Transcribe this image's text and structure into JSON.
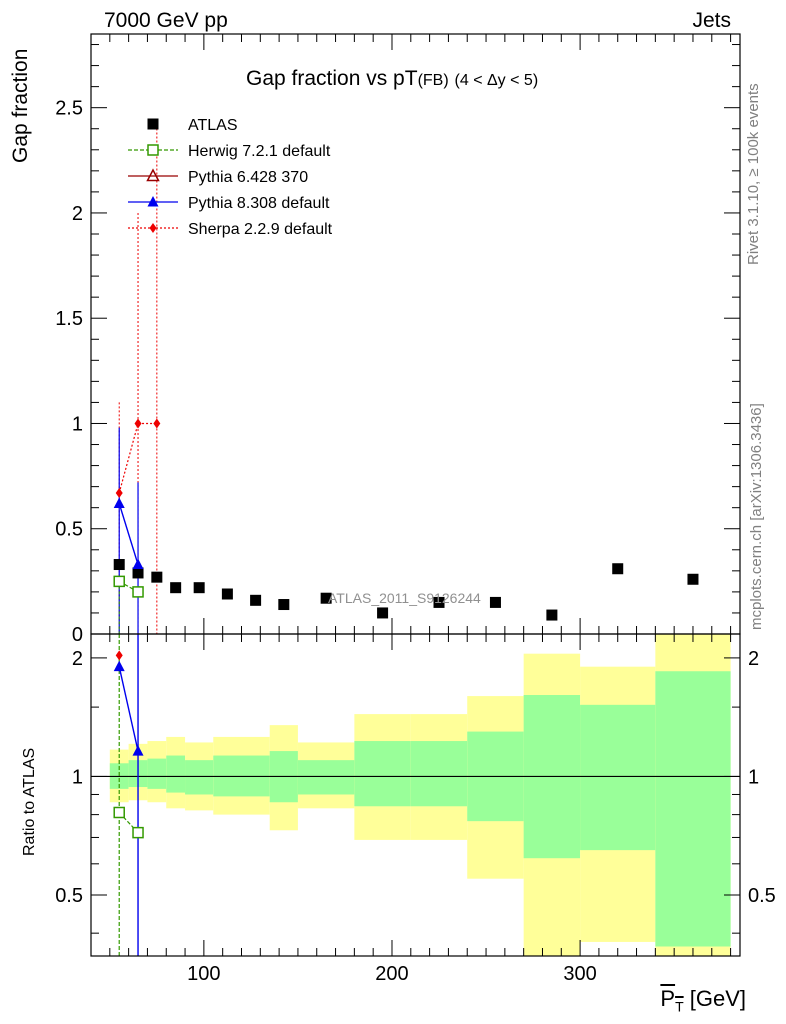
{
  "header": {
    "left": "7000 GeV pp",
    "right": "Jets"
  },
  "side_labels": {
    "rivet": "Rivet 3.1.10, ≥ 100k events",
    "mcplots": "mcplots.cern.ch [arXiv:1306.3436]"
  },
  "watermark": "ATLAS_2011_S9126244",
  "colors": {
    "atlas": "#000000",
    "herwig": "#339900",
    "pythia6": "#990000",
    "pythia8": "#0000ee",
    "sherpa": "#ee0000",
    "band_outer": "#ffff99",
    "band_inner": "#99ff99"
  },
  "chart_data": [
    {
      "type": "scatter",
      "title": "Gap fraction vs pT",
      "title_suffix": "(FB)",
      "title_range": "(4 < Δy < 5)",
      "ylabel": "Gap fraction",
      "xlim": [
        40,
        385
      ],
      "ylim": [
        0,
        2.85
      ],
      "yticks": [
        0,
        0.5,
        1,
        1.5,
        2,
        2.5
      ],
      "ytick_labels": [
        "0",
        "0.5",
        "1",
        "1.5",
        "2",
        "2.5"
      ],
      "legend_position": "top-left",
      "legend": [
        {
          "label": "ATLAS",
          "marker": "square",
          "color": "#000000"
        },
        {
          "label": "Herwig 7.2.1 default",
          "marker": "open-square",
          "color": "#339900"
        },
        {
          "label": "Pythia 6.428 370",
          "marker": "open-triangle",
          "color": "#990000"
        },
        {
          "label": "Pythia 8.308 default",
          "marker": "triangle",
          "color": "#0000ee"
        },
        {
          "label": "Sherpa 2.2.9 default",
          "marker": "diamond",
          "color": "#ee0000"
        }
      ],
      "series": [
        {
          "name": "ATLAS",
          "x": [
            55,
            65,
            75,
            85,
            97.5,
            112.5,
            127.5,
            142.5,
            165,
            195,
            225,
            255,
            285,
            320,
            360
          ],
          "y": [
            0.33,
            0.29,
            0.27,
            0.22,
            0.22,
            0.19,
            0.16,
            0.14,
            0.17,
            0.1,
            0.15,
            0.15,
            0.09,
            0.31,
            0.26
          ]
        },
        {
          "name": "Herwig 7.2.1 default",
          "x": [
            55,
            65
          ],
          "y": [
            0.25,
            0.2
          ]
        },
        {
          "name": "Pythia 8.308 default",
          "x": [
            55,
            65
          ],
          "y": [
            0.62,
            0.33
          ]
        },
        {
          "name": "Sherpa 2.2.9 default",
          "x": [
            55,
            65,
            75
          ],
          "y": [
            0.67,
            1.0,
            1.0
          ]
        }
      ]
    },
    {
      "type": "line",
      "xlabel": "P_T [GeV]",
      "ylabel": "Ratio to ATLAS",
      "xlim": [
        40,
        385
      ],
      "ylim": [
        0.35,
        2.3
      ],
      "log_y": true,
      "xticks": [
        100,
        200,
        300
      ],
      "xtick_labels": [
        "100",
        "200",
        "300"
      ],
      "yticks": [
        0.5,
        1,
        2
      ],
      "ytick_labels": [
        "0.5",
        "1",
        "2"
      ],
      "bands": {
        "edges": [
          50,
          60,
          70,
          80,
          90,
          105,
          120,
          135,
          150,
          180,
          210,
          240,
          270,
          300,
          340,
          380
        ],
        "outer_low": [
          0.86,
          0.87,
          0.86,
          0.83,
          0.82,
          0.8,
          0.8,
          0.73,
          0.83,
          0.69,
          0.69,
          0.55,
          0.34,
          0.38,
          0.35
        ],
        "outer_high": [
          1.17,
          1.21,
          1.23,
          1.26,
          1.22,
          1.26,
          1.26,
          1.35,
          1.22,
          1.44,
          1.44,
          1.6,
          2.05,
          1.9,
          2.4
        ],
        "inner_low": [
          0.93,
          0.94,
          0.93,
          0.91,
          0.9,
          0.89,
          0.89,
          0.86,
          0.9,
          0.84,
          0.84,
          0.77,
          0.62,
          0.65,
          0.37
        ],
        "inner_high": [
          1.08,
          1.1,
          1.11,
          1.13,
          1.1,
          1.13,
          1.13,
          1.16,
          1.1,
          1.23,
          1.23,
          1.3,
          1.61,
          1.52,
          1.85
        ]
      },
      "series": [
        {
          "name": "Herwig 7.2.1 default",
          "x": [
            55,
            65
          ],
          "y": [
            0.81,
            0.72
          ]
        },
        {
          "name": "Pythia 8.308 default",
          "x": [
            55,
            65
          ],
          "y": [
            1.9,
            1.16
          ]
        },
        {
          "name": "Sherpa 2.2.9 default",
          "x": [
            55
          ],
          "y": [
            2.03
          ]
        }
      ]
    }
  ]
}
